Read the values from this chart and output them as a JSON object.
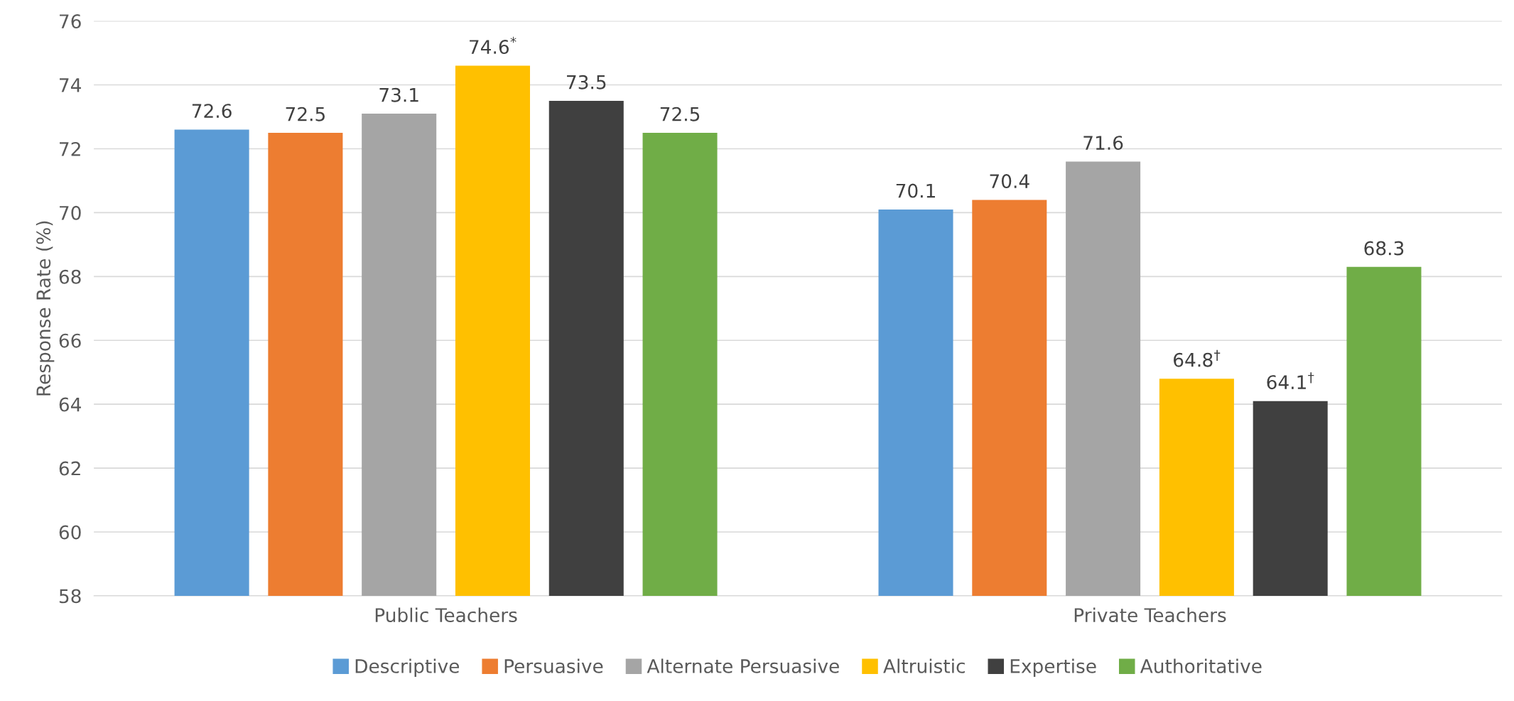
{
  "chart_data": {
    "type": "bar",
    "ylabel": "Response Rate (%)",
    "categories": [
      "Public Teachers",
      "Private Teachers"
    ],
    "series": [
      {
        "name": "Descriptive",
        "color": "#5b9bd5",
        "values": [
          72.6,
          70.1
        ],
        "value_labels": [
          "72.6",
          "70.1"
        ]
      },
      {
        "name": "Persuasive",
        "color": "#ed7d31",
        "values": [
          72.5,
          70.4
        ],
        "value_labels": [
          "72.5",
          "70.4"
        ]
      },
      {
        "name": "Alternate Persuasive",
        "color": "#a5a5a5",
        "values": [
          73.1,
          71.6
        ],
        "value_labels": [
          "73.1",
          "71.6"
        ]
      },
      {
        "name": "Altruistic",
        "color": "#ffc000",
        "values": [
          74.6,
          64.8
        ],
        "value_labels": [
          "74.6$^{*}$",
          "64.8$^{†}$"
        ]
      },
      {
        "name": "Expertise",
        "color": "#404040",
        "values": [
          73.5,
          64.1
        ],
        "value_labels": [
          "73.5",
          "64.1$^{†}$"
        ]
      },
      {
        "name": "Authoritative",
        "color": "#70ad47",
        "values": [
          72.5,
          68.3
        ],
        "value_labels": [
          "72.5",
          "68.3"
        ]
      }
    ],
    "ylim": [
      58,
      76
    ],
    "yticks": [
      58,
      60,
      62,
      64,
      66,
      68,
      70,
      72,
      74,
      76
    ],
    "grid": "y",
    "legend": "bottom"
  }
}
